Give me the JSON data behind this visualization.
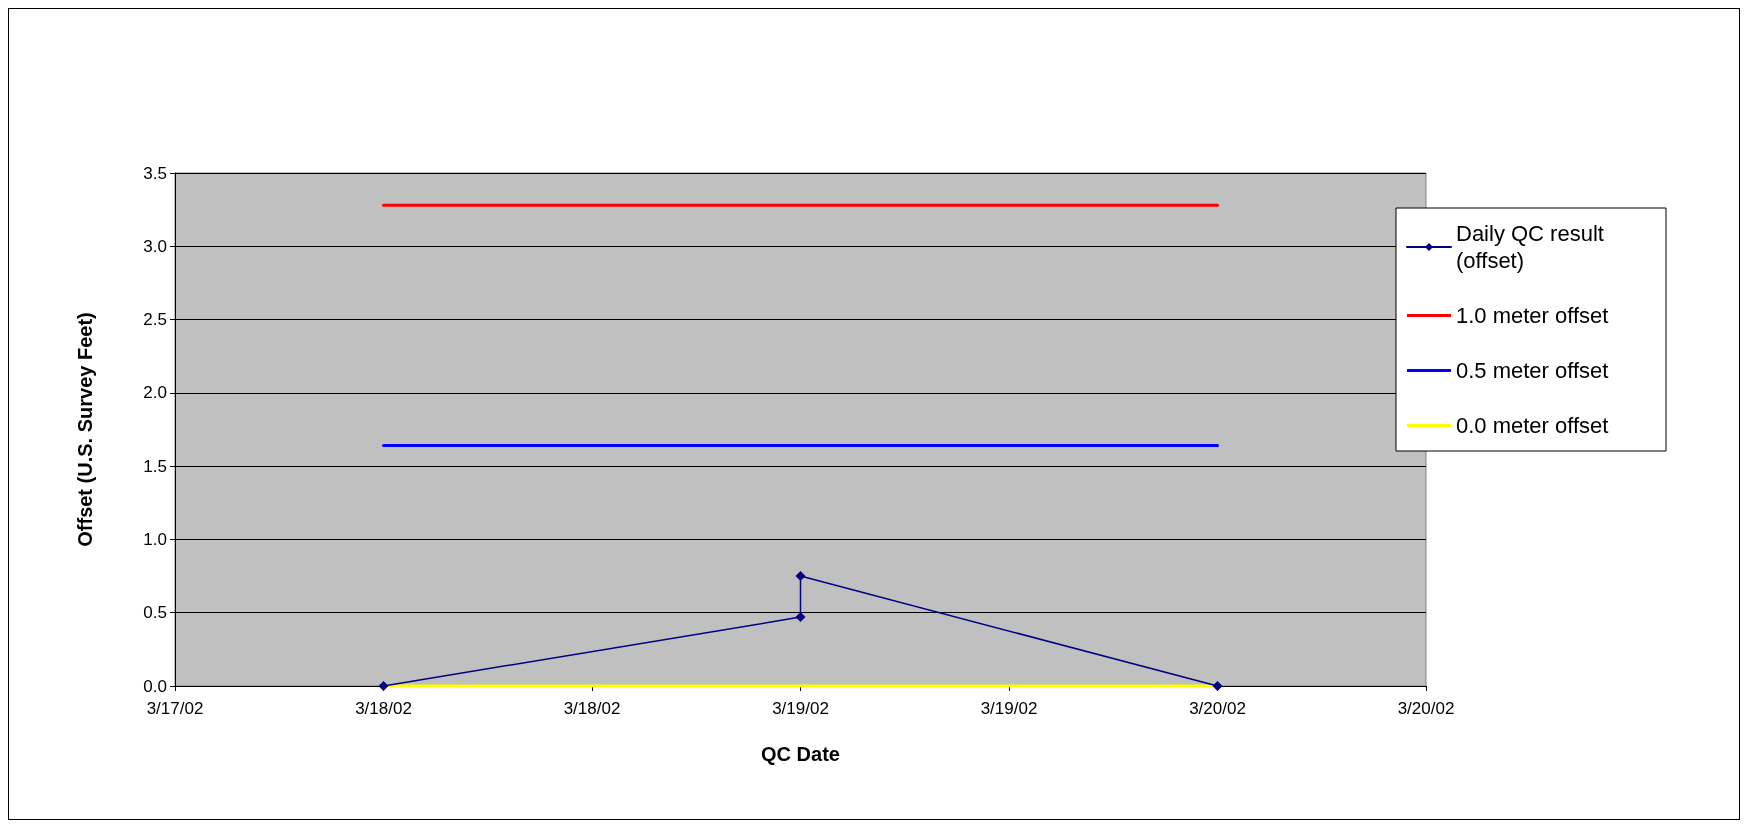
{
  "chart_data": {
    "type": "line",
    "xlabel": "QC Date",
    "ylabel": "Offset (U.S. Survey Feet)",
    "xlim": [
      "--03-17T12:00",
      "--03-20T12:00"
    ],
    "xticks": [
      {
        "value": "--03-17T12:00",
        "label": "3/17/02"
      },
      {
        "value": "--03-18T00:00",
        "label": "3/18/02"
      },
      {
        "value": "--03-18T12:00",
        "label": "3/18/02"
      },
      {
        "value": "--03-19T00:00",
        "label": "3/19/02"
      },
      {
        "value": "--03-19T12:00",
        "label": "3/19/02"
      },
      {
        "value": "--03-20T00:00",
        "label": "3/20/02"
      },
      {
        "value": "--03-20T12:00",
        "label": "3/20/02"
      }
    ],
    "ylim": [
      0,
      3.5
    ],
    "yticks": [
      {
        "value": 0,
        "label": "0.0"
      },
      {
        "value": 0.5,
        "label": "0.5"
      },
      {
        "value": 1,
        "label": "1.0"
      },
      {
        "value": 1.5,
        "label": "1.5"
      },
      {
        "value": 2,
        "label": "2.0"
      },
      {
        "value": 2.5,
        "label": "2.5"
      },
      {
        "value": 3,
        "label": "3.0"
      },
      {
        "value": 3.5,
        "label": "3.5"
      }
    ],
    "series": [
      {
        "name": "Daily QC result (offset)",
        "color": "#000080",
        "marker": "diamond",
        "x": [
          "--03-18T00:00",
          "--03-19T00:00",
          "--03-19T00:00",
          "--03-20T00:00"
        ],
        "values": [
          0,
          0.47,
          0.75,
          0
        ]
      },
      {
        "name": "1.0 meter offset",
        "color": "#ff0000",
        "marker": "none",
        "x": [
          "--03-18T00:00",
          "--03-20T00:00"
        ],
        "values": [
          3.28,
          3.28
        ]
      },
      {
        "name": "0.5 meter offset",
        "color": "#0000ff",
        "marker": "none",
        "x": [
          "--03-18T00:00",
          "--03-20T00:00"
        ],
        "values": [
          1.64,
          1.64
        ]
      },
      {
        "name": "0.0 meter offset",
        "color": "#ffff00",
        "marker": "none",
        "x": [
          "--03-18T00:00",
          "--03-20T00:00"
        ],
        "values": [
          0,
          0
        ]
      }
    ],
    "grid": "y",
    "legend": "right",
    "line_style": "solid"
  }
}
